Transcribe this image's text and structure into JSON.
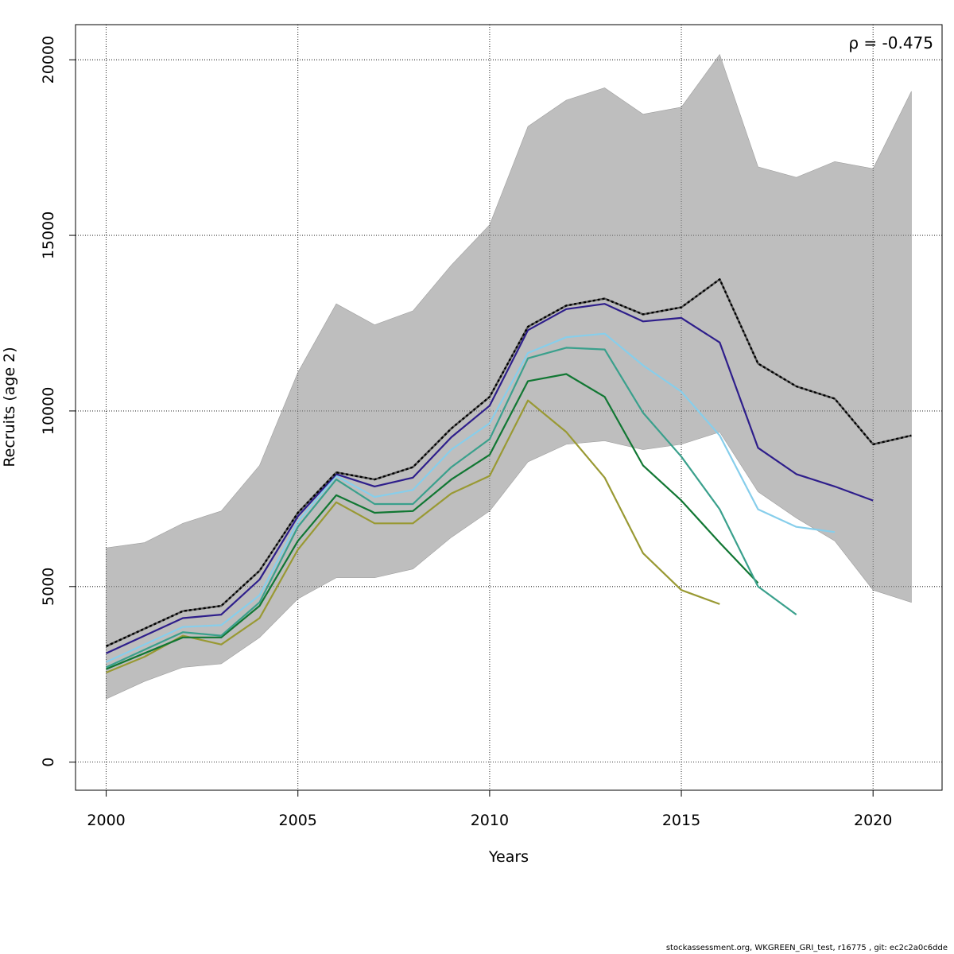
{
  "chart_data": {
    "type": "line",
    "xlabel": "Years",
    "ylabel": "Recruits (age 2)",
    "xlim": [
      1999.2,
      2021.8
    ],
    "ylim": [
      -800,
      21000
    ],
    "xticks": [
      2000,
      2005,
      2010,
      2015,
      2020
    ],
    "yticks": [
      0,
      5000,
      10000,
      15000,
      20000
    ],
    "grid": true,
    "annotation": "ρ = -0.475",
    "band": {
      "x": [
        2000,
        2001,
        2002,
        2003,
        2004,
        2005,
        2006,
        2007,
        2008,
        2009,
        2010,
        2011,
        2012,
        2013,
        2014,
        2015,
        2016,
        2017,
        2018,
        2019,
        2020,
        2021
      ],
      "upper": [
        6100,
        6250,
        6800,
        7150,
        8450,
        11100,
        13050,
        12450,
        12850,
        14150,
        15300,
        18100,
        18850,
        19200,
        18450,
        18650,
        20150,
        16950,
        16650,
        17100,
        16900,
        19100
      ],
      "lower": [
        1800,
        2300,
        2700,
        2800,
        3550,
        4650,
        5250,
        5250,
        5500,
        6400,
        7150,
        8550,
        9050,
        9150,
        8900,
        9050,
        9400,
        7700,
        6950,
        6300,
        4900,
        4550
      ],
      "color": "#bebebe"
    },
    "series": [
      {
        "x": [
          2000,
          2001,
          2002,
          2003,
          2004,
          2005,
          2006,
          2007,
          2008,
          2009,
          2010,
          2011,
          2012,
          2013,
          2014,
          2015,
          2016,
          2017,
          2018,
          2019,
          2020,
          2021
        ],
        "values": [
          3300,
          3800,
          4300,
          4450,
          5450,
          7100,
          8250,
          8050,
          8400,
          9500,
          10400,
          12400,
          13000,
          13200,
          12750,
          12950,
          13750,
          11350,
          10700,
          10350,
          9050,
          9300
        ],
        "color": "#000000",
        "dashed": true
      },
      {
        "x": [
          2000,
          2001,
          2002,
          2003,
          2004,
          2005,
          2006,
          2007,
          2008,
          2009,
          2010,
          2011,
          2012,
          2013,
          2014,
          2015,
          2016,
          2017,
          2018,
          2019,
          2020
        ],
        "values": [
          3100,
          3600,
          4100,
          4200,
          5200,
          7000,
          8200,
          7850,
          8100,
          9250,
          10150,
          12300,
          12900,
          13050,
          12550,
          12650,
          11950,
          8950,
          8200,
          7850,
          7450
        ],
        "color": "#2e1e8b",
        "dashed": false
      },
      {
        "x": [
          2000,
          2001,
          2002,
          2003,
          2004,
          2005,
          2006,
          2007,
          2008,
          2009,
          2010,
          2011,
          2012,
          2013,
          2014,
          2015,
          2016,
          2017,
          2018,
          2019
        ],
        "values": [
          2850,
          3350,
          3850,
          3900,
          4750,
          6850,
          8150,
          7550,
          7750,
          8900,
          9650,
          11650,
          12100,
          12200,
          11300,
          10550,
          9300,
          7200,
          6700,
          6550
        ],
        "color": "#87ceeb",
        "dashed": false
      },
      {
        "x": [
          2000,
          2001,
          2002,
          2003,
          2004,
          2005,
          2006,
          2007,
          2008,
          2009,
          2010,
          2011,
          2012,
          2013,
          2014,
          2015,
          2016,
          2017,
          2018
        ],
        "values": [
          2700,
          3200,
          3700,
          3600,
          4550,
          6700,
          8050,
          7350,
          7350,
          8400,
          9200,
          11500,
          11800,
          11750,
          9950,
          8700,
          7200,
          5000,
          4200
        ],
        "color": "#3aa08c",
        "dashed": false
      },
      {
        "x": [
          2000,
          2001,
          2002,
          2003,
          2004,
          2005,
          2006,
          2007,
          2008,
          2009,
          2010,
          2011,
          2012,
          2013,
          2014,
          2015,
          2016,
          2017
        ],
        "values": [
          2650,
          3100,
          3550,
          3550,
          4450,
          6300,
          7600,
          7100,
          7150,
          8050,
          8750,
          10850,
          11050,
          10400,
          8450,
          7450,
          6250,
          5100
        ],
        "color": "#117733",
        "dashed": false
      },
      {
        "x": [
          2000,
          2001,
          2002,
          2003,
          2004,
          2005,
          2006,
          2007,
          2008,
          2009,
          2010,
          2011,
          2012,
          2013,
          2014,
          2015,
          2016
        ],
        "values": [
          2550,
          3000,
          3600,
          3350,
          4100,
          6050,
          7400,
          6800,
          6800,
          7650,
          8150,
          10300,
          9400,
          8100,
          5950,
          4900,
          4500
        ],
        "color": "#999933",
        "dashed": false
      }
    ]
  },
  "footer": "stockassessment.org, WKGREEN_GRI_test, r16775 , git: ec2c2a0c6dde"
}
